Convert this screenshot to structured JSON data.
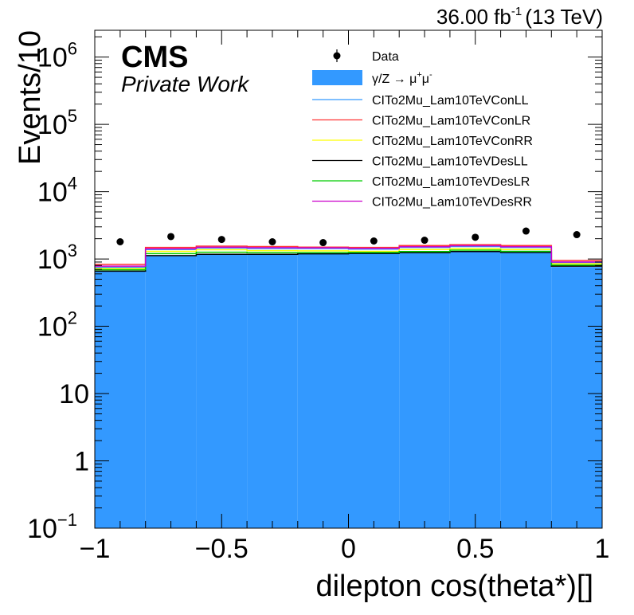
{
  "chart_data": {
    "type": "histogram",
    "lumi_label": {
      "value": "36.00 fb",
      "sup": "-1",
      "energy": "(13 TeV)"
    },
    "cms_label": "CMS",
    "private_label": "Private Work",
    "xlabel": "dilepton cos(theta*)[]",
    "ylabel": "Events/10",
    "x_range": [
      -1,
      1
    ],
    "y_range": [
      0.1,
      2500000
    ],
    "y_scale": "log",
    "x_ticks": [
      {
        "value": -1,
        "label": "−1"
      },
      {
        "value": -0.5,
        "label": "−0.5"
      },
      {
        "value": 0,
        "label": "0"
      },
      {
        "value": 0.5,
        "label": "0.5"
      },
      {
        "value": 1,
        "label": "1"
      }
    ],
    "y_ticks": [
      {
        "value": 0.1,
        "base": "10",
        "exp": "−1"
      },
      {
        "value": 1,
        "base": "1",
        "exp": ""
      },
      {
        "value": 10,
        "base": "10",
        "exp": ""
      },
      {
        "value": 100,
        "base": "10",
        "exp": "2"
      },
      {
        "value": 1000,
        "base": "10",
        "exp": "3"
      },
      {
        "value": 10000,
        "base": "10",
        "exp": "4"
      },
      {
        "value": 100000,
        "base": "10",
        "exp": "5"
      },
      {
        "value": 1000000,
        "base": "10",
        "exp": "6"
      }
    ],
    "bin_edges": [
      -1,
      -0.8,
      -0.6,
      -0.4,
      -0.2,
      0,
      0.2,
      0.4,
      0.6,
      0.8,
      1
    ],
    "data_points": {
      "x": [
        -0.9,
        -0.7,
        -0.5,
        -0.3,
        -0.1,
        0.1,
        0.3,
        0.5,
        0.7,
        0.9
      ],
      "y": [
        1800,
        2150,
        1950,
        1800,
        1750,
        1850,
        1900,
        2100,
        2600,
        2300
      ]
    },
    "background": {
      "name": "γ/Z → μ⁺μ⁻",
      "color": "#3399ff",
      "values": [
        650,
        1100,
        1150,
        1150,
        1180,
        1200,
        1220,
        1280,
        1230,
        760
      ]
    },
    "series": [
      {
        "name": "CITo2Mu_Lam10TeVConLL",
        "color": "#3399ff",
        "values": [
          750,
          1380,
          1450,
          1430,
          1430,
          1400,
          1480,
          1530,
          1480,
          880
        ]
      },
      {
        "name": "CITo2Mu_Lam10TeVConLR",
        "color": "#ff3333",
        "values": [
          830,
          1480,
          1550,
          1530,
          1500,
          1480,
          1580,
          1630,
          1580,
          950
        ]
      },
      {
        "name": "CITo2Mu_Lam10TeVConRR",
        "color": "#ffff00",
        "values": [
          720,
          1300,
          1370,
          1330,
          1320,
          1300,
          1380,
          1420,
          1380,
          850
        ]
      },
      {
        "name": "CITo2Mu_Lam10TeVDesLL",
        "color": "#000000",
        "values": [
          660,
          1120,
          1170,
          1170,
          1190,
          1210,
          1240,
          1290,
          1250,
          780
        ]
      },
      {
        "name": "CITo2Mu_Lam10TeVDesLR",
        "color": "#00cc00",
        "values": [
          690,
          1200,
          1260,
          1240,
          1240,
          1250,
          1290,
          1350,
          1300,
          810
        ]
      },
      {
        "name": "CITo2Mu_Lam10TeVDesRR",
        "color": "#cc00cc",
        "values": [
          780,
          1420,
          1490,
          1470,
          1460,
          1440,
          1520,
          1570,
          1520,
          900
        ]
      }
    ],
    "legend": {
      "position": "top-right",
      "data_label": "Data",
      "bkg_label": {
        "base": "γ/Z → μ",
        "sup1": "+",
        "mid": "μ",
        "sup2": "-"
      }
    }
  }
}
